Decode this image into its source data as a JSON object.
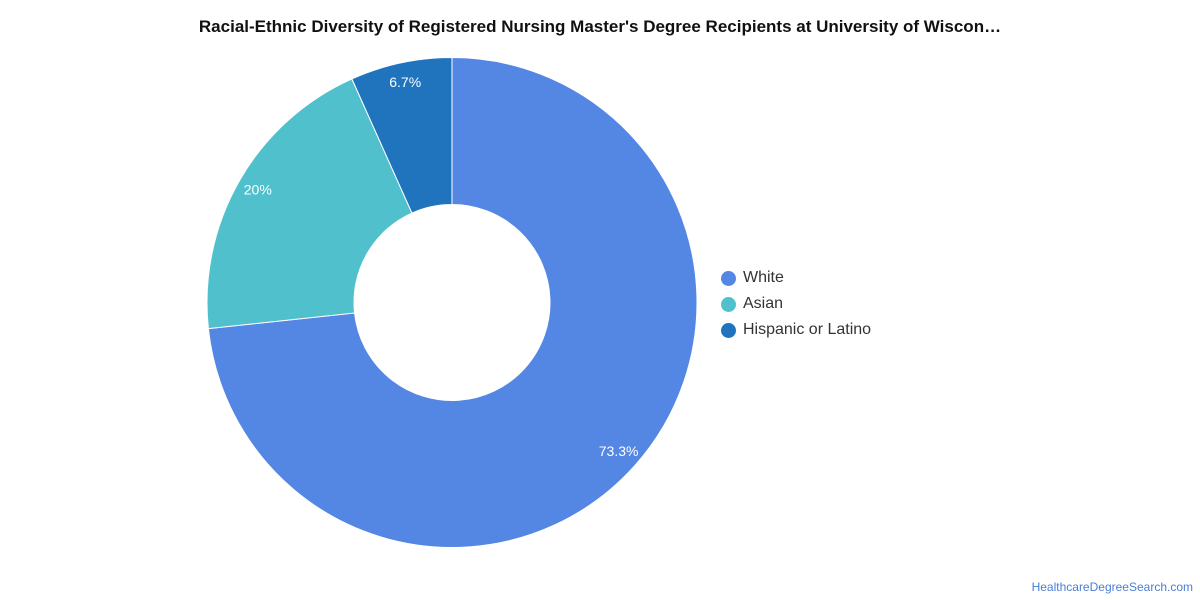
{
  "chart_data": {
    "type": "pie",
    "title": "Racial-Ethnic Diversity of Registered Nursing Master's Degree Recipients at University of Wiscon…",
    "categories": [
      "White",
      "Asian",
      "Hispanic or Latino"
    ],
    "values": [
      73.3,
      20,
      6.7
    ],
    "value_labels": [
      "73.3%",
      "20%",
      "6.7%"
    ],
    "colors": [
      "#5486e3",
      "#50c1cc",
      "#1f74bd"
    ],
    "donut": true,
    "legend_position": "right"
  },
  "legend": {
    "items": [
      {
        "label": "White",
        "color": "#5486e3"
      },
      {
        "label": "Asian",
        "color": "#50c1cc"
      },
      {
        "label": "Hispanic or Latino",
        "color": "#1f74bd"
      }
    ]
  },
  "footer": {
    "source": "HealthcareDegreeSearch.com"
  }
}
